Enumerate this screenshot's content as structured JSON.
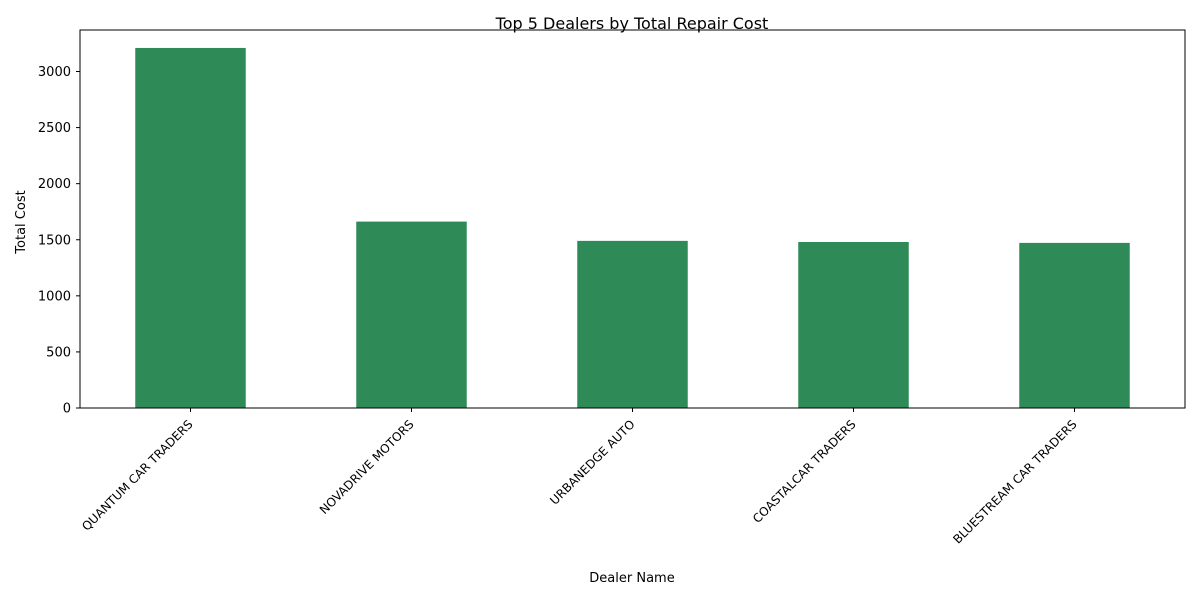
{
  "chart_data": {
    "type": "bar",
    "title": "Top 5 Dealers by Total Repair Cost",
    "xlabel": "Dealer Name",
    "ylabel": "Total Cost",
    "categories": [
      "QUANTUM CAR TRADERS",
      "NOVADRIVE MOTORS",
      "URBANEDGE AUTO",
      "COASTALCAR TRADERS",
      "BLUESTREAM CAR TRADERS"
    ],
    "values": [
      3210,
      1662,
      1490,
      1480,
      1472
    ],
    "ylim": [
      0,
      3370
    ],
    "yticks": [
      0,
      500,
      1000,
      1500,
      2000,
      2500,
      3000
    ],
    "grid": false,
    "bar_color": "#2e8b57"
  }
}
